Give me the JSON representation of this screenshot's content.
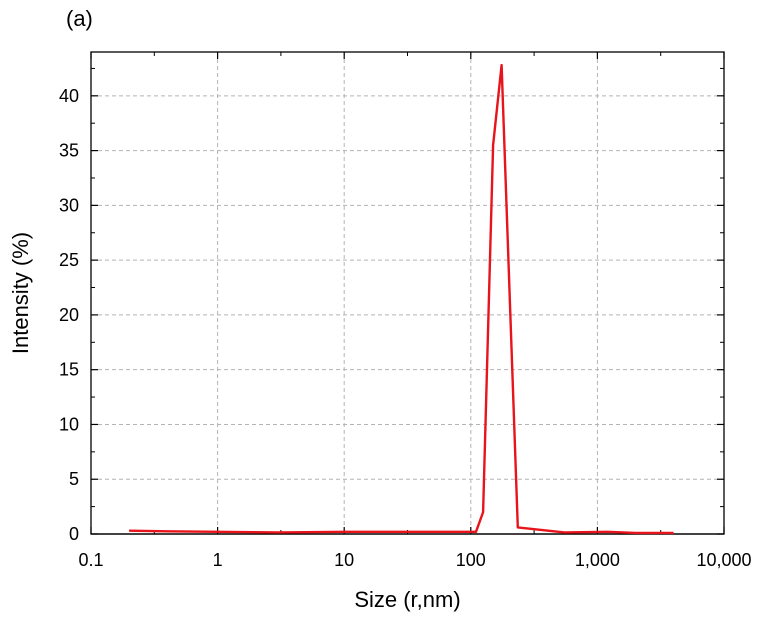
{
  "panel_label": "(a)",
  "chart_data": {
    "type": "line",
    "title": "",
    "xlabel": "Size (r,nm)",
    "ylabel": "Intensity (%)",
    "x_scale": "log",
    "xlim": [
      0.1,
      10000
    ],
    "ylim": [
      0,
      44
    ],
    "x_ticks": [
      0.1,
      1,
      10,
      100,
      1000,
      10000
    ],
    "x_tick_labels": [
      "0.1",
      "1",
      "10",
      "100",
      "1,000",
      "10,000"
    ],
    "y_ticks": [
      0,
      5,
      10,
      15,
      20,
      25,
      30,
      35,
      40
    ],
    "y_tick_labels": [
      "0",
      "5",
      "10",
      "15",
      "20",
      "25",
      "30",
      "35",
      "40"
    ],
    "grid": true,
    "legend": "none",
    "series": [
      {
        "color": "#e8141b",
        "x": [
          0.2,
          0.4,
          1,
          3,
          10,
          40,
          110,
          125,
          150,
          175,
          235,
          550,
          1200,
          2000,
          4000
        ],
        "y": [
          0.3,
          0.25,
          0.2,
          0.15,
          0.2,
          0.2,
          0.2,
          2.0,
          35.5,
          42.8,
          0.6,
          0.15,
          0.2,
          0.1,
          0.1
        ]
      }
    ]
  }
}
